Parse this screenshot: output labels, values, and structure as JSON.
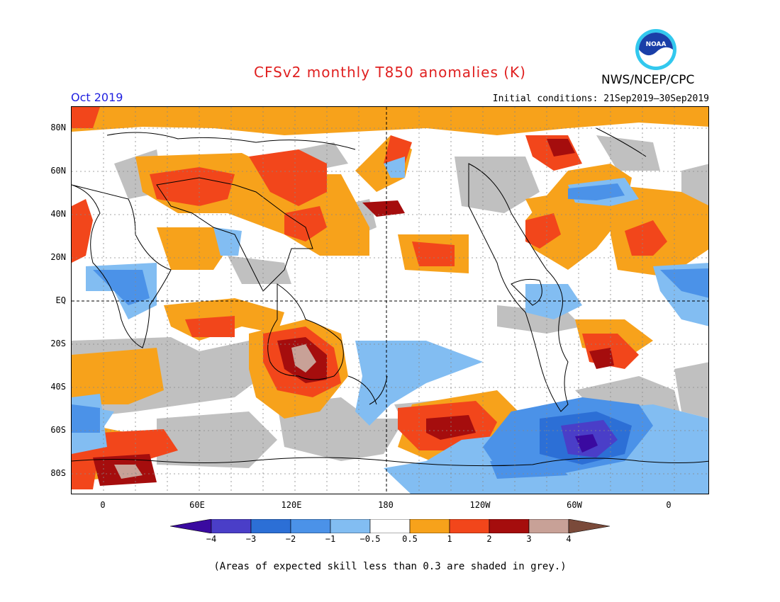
{
  "header": {
    "title": "CFSv2 monthly T850 anomalies (K)",
    "month": "Oct 2019",
    "initial_conditions": "Initial conditions: 21Sep2019–30Sep2019",
    "agency": "NWS/NCEP/CPC",
    "logo_text": "NOAA"
  },
  "map": {
    "lat_labels": [
      "80N",
      "60N",
      "40N",
      "20N",
      "EQ",
      "20S",
      "40S",
      "60S",
      "80S"
    ],
    "lon_labels": [
      "0",
      "60E",
      "120E",
      "180",
      "120W",
      "60W",
      "0"
    ],
    "colors": {
      "lt_-4": "#3a0aa0",
      "-4_-3": "#4a3ec8",
      "-3_-2": "#2c6fd6",
      "-2_-1": "#4b92e8",
      "-1_-0.5": "#82bdf2",
      "-0.5_0.5": "#ffffff",
      "0.5_1": "#f7a21b",
      "1_2": "#f2461b",
      "2_3": "#a50d0d",
      "3_4": "#c8a197",
      "gt_4": "#7a4a3a",
      "low_skill": "#c0c0c0"
    }
  },
  "colorbar": {
    "ticks": [
      "−4",
      "−3",
      "−2",
      "−1",
      "−0.5",
      "0.5",
      "1",
      "2",
      "3",
      "4"
    ]
  },
  "footnote": "(Areas of expected skill less than 0.3 are shaded in grey.)"
}
